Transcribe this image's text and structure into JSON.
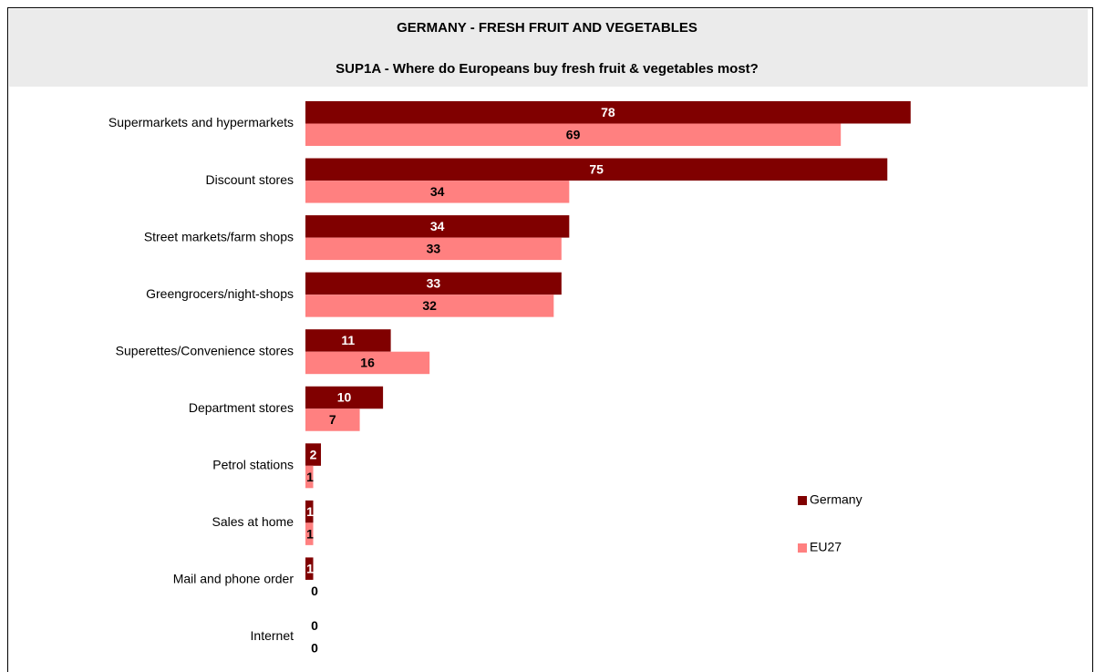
{
  "chart_data": {
    "type": "hbar",
    "title": "GERMANY - FRESH FRUIT AND VEGETABLES",
    "subtitle": "SUP1A - Where do Europeans buy fresh fruit & vegetables most?",
    "categories": [
      "Supermarkets and hypermarkets",
      "Discount stores",
      "Street markets/farm shops",
      "Greengrocers/night-shops",
      "Superettes/Convenience stores",
      "Department stores",
      "Petrol stations",
      "Sales at home",
      "Mail and phone order",
      "Internet"
    ],
    "series": [
      {
        "name": "Germany",
        "color": "#800000",
        "values": [
          78,
          75,
          34,
          33,
          11,
          10,
          2,
          1,
          1,
          0
        ]
      },
      {
        "name": "EU27",
        "color": "#ff8080",
        "values": [
          69,
          34,
          33,
          32,
          16,
          7,
          1,
          1,
          0,
          0
        ]
      }
    ],
    "xlim": [
      0,
      100
    ],
    "legend": "right"
  }
}
